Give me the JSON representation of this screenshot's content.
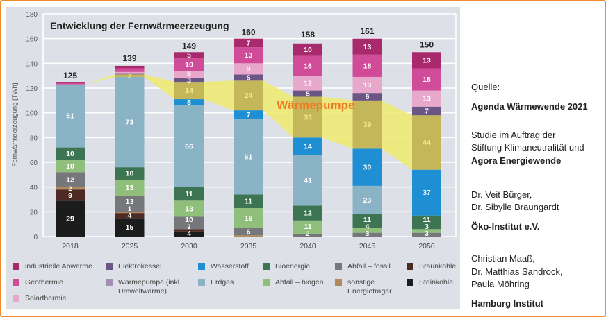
{
  "source": {
    "quelle_label": "Quelle:",
    "title": "Agenda Wärmewende 2021",
    "study_line1": "Studie im Auftrag der",
    "study_line2": "Stiftung Klimaneutralität und",
    "study_line3": "Agora Energiewende",
    "authors1_line1": "Dr. Veit Bürger,",
    "authors1_line2": "Dr. Sibylle Braungardt",
    "institute1": "Öko-Institut e.V.",
    "authors2_line1": "Christian Maaß,",
    "authors2_line2": "Dr. Matthias Sandrock,",
    "authors2_line3": "Paula Möhring",
    "institute2": "Hamburg Institut"
  },
  "chart_data": {
    "type": "bar",
    "stacked": true,
    "title": "Entwicklung der Fernwärmeerzeugung",
    "ylabel": "Fernwärmeerzeugung [TWh]",
    "xlabel": "",
    "ylim": [
      0,
      180
    ],
    "yticks": [
      0,
      20,
      40,
      60,
      80,
      100,
      120,
      140,
      160,
      180
    ],
    "grid": true,
    "legend_position": "bottom",
    "annotation": "Wärmepumpe",
    "annotation_color": "#f07a20",
    "categories": [
      "2018",
      "2025",
      "2030",
      "2035",
      "2040",
      "2045",
      "2050"
    ],
    "totals": [
      125,
      139,
      149,
      160,
      158,
      161,
      150
    ],
    "series": [
      {
        "name": "Steinkohle",
        "color": "#1c1c1c",
        "values": [
          29,
          15,
          4,
          0,
          0,
          0,
          0
        ]
      },
      {
        "name": "Braunkohle",
        "color": "#4e2a24",
        "values": [
          9,
          4,
          2,
          0,
          0,
          0,
          0
        ]
      },
      {
        "name": "sonstige Energieträger",
        "color": "#b08a5a",
        "values": [
          2,
          1,
          0,
          1,
          0,
          0,
          0
        ]
      },
      {
        "name": "Abfall – fossil",
        "color": "#76777a",
        "values": [
          12,
          13,
          10,
          6,
          2,
          3,
          3
        ]
      },
      {
        "name": "Abfall – biogen",
        "color": "#8fbf7a",
        "values": [
          10,
          13,
          13,
          16,
          11,
          4,
          3
        ]
      },
      {
        "name": "Bioenergie",
        "color": "#3d7552",
        "values": [
          10,
          10,
          11,
          11,
          12,
          11,
          11
        ]
      },
      {
        "name": "Erdgas",
        "color": "#8ab3c6",
        "values": [
          51,
          73,
          66,
          61,
          41,
          23,
          0
        ]
      },
      {
        "name": "Wasserstoff",
        "color": "#1e8fd2",
        "values": [
          0,
          0,
          5,
          7,
          14,
          30,
          37
        ]
      },
      {
        "name": "Wärmepumpe (inkl. Umweltwärme)",
        "color": "#c4b75a",
        "legend_color": "#a38db0",
        "label_color": "#f4ef8c",
        "values": [
          0,
          2,
          14,
          24,
          33,
          39,
          44
        ]
      },
      {
        "name": "Elektrokessel",
        "color": "#6b5585",
        "values": [
          0,
          1,
          3,
          5,
          5,
          6,
          7
        ]
      },
      {
        "name": "Solarthermie",
        "color": "#e8a8cc",
        "values": [
          0,
          1,
          6,
          9,
          12,
          13,
          13
        ]
      },
      {
        "name": "Geothermie",
        "color": "#d04c98",
        "values": [
          1,
          3,
          10,
          13,
          16,
          18,
          18
        ]
      },
      {
        "name": "industrielle Abwärme",
        "color": "#a82a6c",
        "values": [
          1,
          2,
          5,
          7,
          10,
          13,
          13
        ]
      }
    ],
    "hidden_labels": [
      [
        "2018",
        "Geothermie"
      ],
      [
        "2018",
        "industrielle Abwärme"
      ],
      [
        "2025",
        "Elektrokessel"
      ],
      [
        "2025",
        "Solarthermie"
      ],
      [
        "2025",
        "Geothermie"
      ],
      [
        "2025",
        "industrielle Abwärme"
      ],
      [
        "2035",
        "sonstige Energieträger"
      ]
    ],
    "legend": [
      {
        "label": "industrielle Abwärme",
        "color": "#a82a6c"
      },
      {
        "label": "Geothermie",
        "color": "#d04c98"
      },
      {
        "label": "Solarthermie",
        "color": "#e8a8cc"
      },
      {
        "label": "Elektrokessel",
        "color": "#6b5585"
      },
      {
        "label": "Wärmepumpe (inkl. Umweltwärme)",
        "color": "#a38db0"
      },
      {
        "label": "Wasserstoff",
        "color": "#1e8fd2"
      },
      {
        "label": "Erdgas",
        "color": "#8ab3c6"
      },
      {
        "label": "Bioenergie",
        "color": "#3d7552"
      },
      {
        "label": "Abfall – biogen",
        "color": "#8fbf7a"
      },
      {
        "label": "Abfall – fossil",
        "color": "#76777a"
      },
      {
        "label": "sonstige Energieträger",
        "color": "#b08a5a"
      },
      {
        "label": "Braunkohle",
        "color": "#4e2a24"
      },
      {
        "label": "Steinkohle",
        "color": "#1c1c1c"
      }
    ]
  }
}
